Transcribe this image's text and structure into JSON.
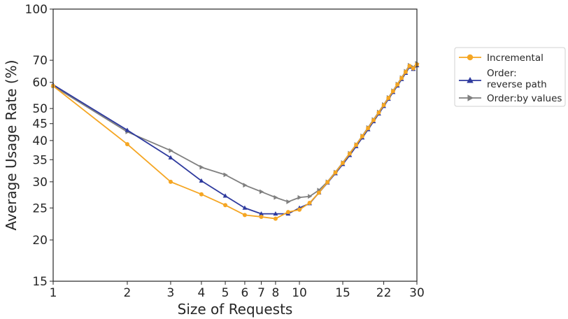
{
  "chart_data": {
    "type": "line",
    "title": "",
    "xlabel": "Size of Requests",
    "ylabel": "Average Usage Rate (%)",
    "x_scale": "log",
    "y_scale": "log",
    "xlim": [
      1,
      30
    ],
    "ylim": [
      15,
      100
    ],
    "x_ticks": [
      1,
      2,
      3,
      4,
      5,
      6,
      7,
      8,
      10,
      15,
      22,
      30
    ],
    "x_tick_labels": [
      "1",
      "2",
      "3",
      "4",
      "5",
      "6",
      "7",
      "8",
      "10",
      "15",
      "22",
      "30"
    ],
    "y_ticks": [
      15,
      20,
      25,
      30,
      35,
      40,
      45,
      50,
      60,
      70,
      100
    ],
    "y_tick_labels": [
      "15",
      "20",
      "25",
      "30",
      "35",
      "40",
      "45",
      "50",
      "60",
      "70",
      "100"
    ],
    "grid": false,
    "legend": "outside-right",
    "series": [
      {
        "name": "Incremental",
        "color": "#f5a623",
        "marker": "circle",
        "x": [
          1,
          2,
          3,
          4,
          5,
          6,
          7,
          8,
          9,
          10,
          11,
          12,
          13,
          14,
          15,
          16,
          17,
          18,
          19,
          20,
          21,
          22,
          23,
          24,
          25,
          26,
          27,
          28,
          29,
          30
        ],
        "y": [
          58.5,
          39,
          30,
          27.5,
          25.5,
          23.8,
          23.5,
          23.2,
          24.3,
          24.7,
          25.9,
          27.8,
          29.9,
          32.0,
          34.2,
          36.5,
          38.8,
          41.2,
          43.6,
          46.1,
          48.6,
          51.2,
          53.8,
          56.4,
          59.1,
          61.8,
          64.5,
          67.3,
          66.2,
          68.0
        ]
      },
      {
        "name": "Order:\nreverse path",
        "color": "#2e3a9e",
        "marker": "triangle-up",
        "x": [
          1,
          2,
          3,
          4,
          5,
          6,
          7,
          8,
          9,
          10,
          11,
          12,
          13,
          14,
          15,
          16,
          17,
          18,
          19,
          20,
          21,
          22,
          23,
          24,
          25,
          26,
          27,
          28,
          29,
          30
        ],
        "y": [
          59,
          43,
          35.5,
          30.2,
          27.2,
          25,
          24,
          24,
          24,
          25,
          25.8,
          27.8,
          29.8,
          31.8,
          33.9,
          36.1,
          38.4,
          40.8,
          43.2,
          45.7,
          48.2,
          50.8,
          53.4,
          56.0,
          58.6,
          61.3,
          64.0,
          66.8,
          65.8,
          67.5
        ]
      },
      {
        "name": "Order:by values",
        "color": "#808080",
        "marker": "triangle-right",
        "x": [
          1,
          2,
          3,
          4,
          5,
          6,
          7,
          8,
          9,
          10,
          11,
          12,
          13,
          14,
          15,
          16,
          17,
          18,
          19,
          20,
          21,
          22,
          23,
          24,
          25,
          26,
          27,
          28,
          29,
          30
        ],
        "y": [
          58.5,
          42.5,
          37.3,
          33.2,
          31.5,
          29.3,
          28,
          26.9,
          26.1,
          26.9,
          27.1,
          28.3,
          30.0,
          32.1,
          34.3,
          36.6,
          38.9,
          41.3,
          43.8,
          46.3,
          48.8,
          51.4,
          54.0,
          56.6,
          59.3,
          62.0,
          64.8,
          67.6,
          66.6,
          68.5
        ]
      }
    ]
  }
}
